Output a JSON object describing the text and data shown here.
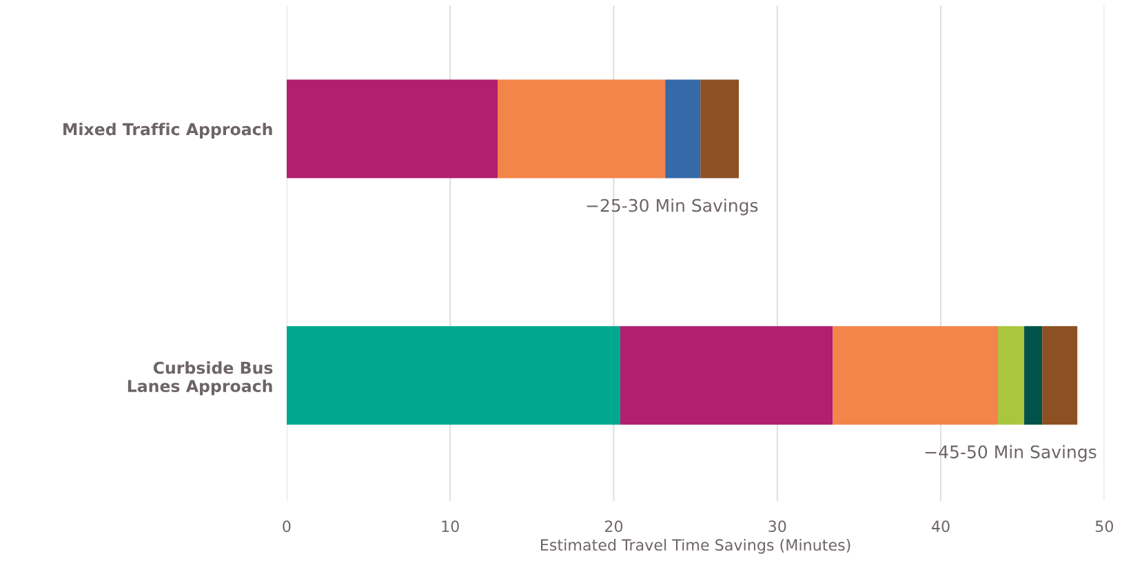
{
  "chart_data": {
    "type": "bar",
    "orientation": "horizontal",
    "stacked": true,
    "xlabel": "Estimated Travel Time Savings (Minutes)",
    "categories": [
      "Mixed Traffic Approach",
      "Curbside Bus\nLanes Approach"
    ],
    "series": [
      {
        "color": "#00a88f",
        "values": [
          null,
          20.4
        ]
      },
      {
        "color": "#b11f6f",
        "values": [
          12.9,
          13.0
        ]
      },
      {
        "color": "#f3844a",
        "values": [
          10.25,
          10.1
        ]
      },
      {
        "color": "#3569a8",
        "values": [
          2.15,
          null
        ]
      },
      {
        "color": "#a9c63f",
        "values": [
          null,
          1.6
        ]
      },
      {
        "color": "#00524a",
        "values": [
          null,
          1.1
        ]
      },
      {
        "color": "#8d5023",
        "values": [
          2.35,
          2.15
        ]
      }
    ],
    "xlim": [
      0,
      50
    ],
    "xticks": [
      0,
      10,
      20,
      30,
      40,
      50
    ],
    "grid": "x",
    "annotations": [
      "−25-30 Min Savings",
      "−45-50 Min Savings"
    ]
  }
}
